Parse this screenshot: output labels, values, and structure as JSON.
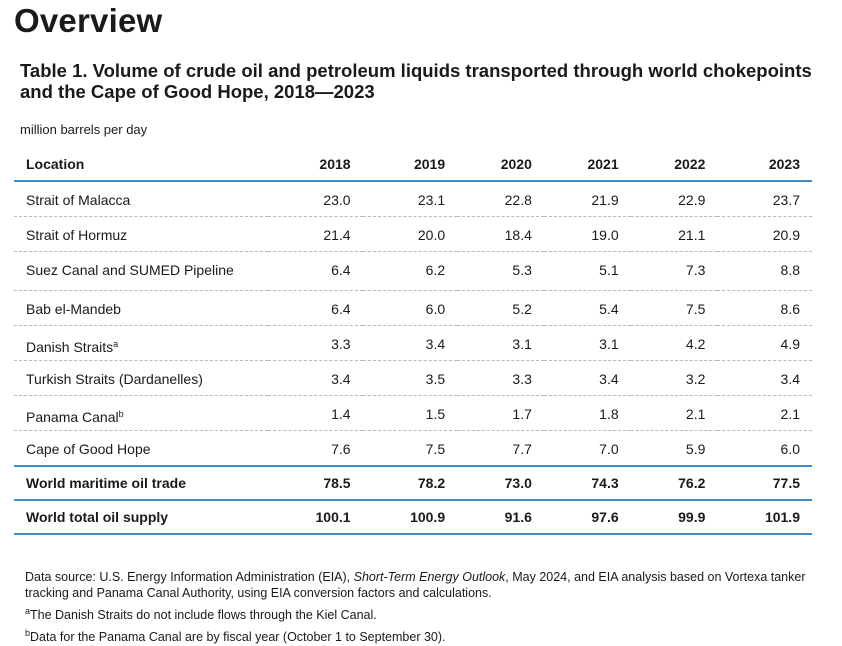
{
  "heading": "Overview",
  "table_title": "Table 1. Volume of crude oil and petroleum liquids transported through world chokepoints and the Cape of Good Hope, 2018—2023",
  "units": "million barrels per day",
  "columns": [
    "Location",
    "2018",
    "2019",
    "2020",
    "2021",
    "2022",
    "2023"
  ],
  "rows": [
    {
      "location": "Strait of Malacca",
      "sup": "",
      "values": [
        "23.0",
        "23.1",
        "22.8",
        "21.9",
        "22.9",
        "23.7"
      ]
    },
    {
      "location": "Strait of Hormuz",
      "sup": "",
      "values": [
        "21.4",
        "20.0",
        "18.4",
        "19.0",
        "21.1",
        "20.9"
      ]
    },
    {
      "location": "Suez Canal and SUMED Pipeline",
      "sup": "",
      "values": [
        "6.4",
        "6.2",
        "5.3",
        "5.1",
        "7.3",
        "8.8"
      ]
    },
    {
      "location": "Bab el-Mandeb",
      "sup": "",
      "values": [
        "6.4",
        "6.0",
        "5.2",
        "5.4",
        "7.5",
        "8.6"
      ]
    },
    {
      "location": "Danish Straits",
      "sup": "a",
      "values": [
        "3.3",
        "3.4",
        "3.1",
        "3.1",
        "4.2",
        "4.9"
      ]
    },
    {
      "location": "Turkish Straits (Dardanelles)",
      "sup": "",
      "values": [
        "3.4",
        "3.5",
        "3.3",
        "3.4",
        "3.2",
        "3.4"
      ]
    },
    {
      "location": "Panama Canal",
      "sup": "b",
      "values": [
        "1.4",
        "1.5",
        "1.7",
        "1.8",
        "2.1",
        "2.1"
      ]
    },
    {
      "location": "Cape of Good Hope",
      "sup": "",
      "values": [
        "7.6",
        "7.5",
        "7.7",
        "7.0",
        "5.9",
        "6.0"
      ]
    }
  ],
  "totals": [
    {
      "location": "World maritime oil trade",
      "values": [
        "78.5",
        "78.2",
        "73.0",
        "74.3",
        "76.2",
        "77.5"
      ]
    },
    {
      "location": "World total oil supply",
      "values": [
        "100.1",
        "100.9",
        "91.6",
        "97.6",
        "99.9",
        "101.9"
      ]
    }
  ],
  "notes": {
    "source_prefix": "Data source: U.S. Energy Information Administration (EIA), ",
    "source_italic": "Short-Term Energy Outlook",
    "source_suffix": ", May 2024, and EIA analysis based on Vortexa tanker tracking and Panama Canal Authority, using EIA conversion factors and calculations.",
    "footnote_a_mark": "a",
    "footnote_a": "The Danish Straits do not include flows through the Kiel Canal.",
    "footnote_b_mark": "b",
    "footnote_b": "Data for the Panama Canal are by fiscal year (October 1 to September 30)."
  }
}
